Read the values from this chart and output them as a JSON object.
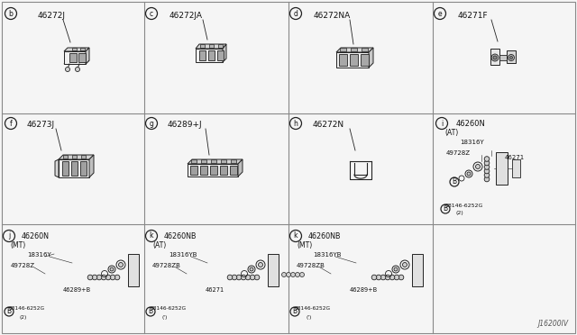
{
  "bg_color": "#f5f5f5",
  "line_color": "#222222",
  "text_color": "#111111",
  "grid_color": "#888888",
  "diagram_code": "J16200IV",
  "col_dividers": [
    0.25,
    0.5,
    0.75
  ],
  "row_dividers": [
    0.662,
    0.33
  ],
  "cells": [
    {
      "id": "b",
      "part": "46272J",
      "col": 0,
      "row": 0
    },
    {
      "id": "c",
      "part": "46272JA",
      "col": 1,
      "row": 0
    },
    {
      "id": "d",
      "part": "46272NA",
      "col": 2,
      "row": 0
    },
    {
      "id": "e",
      "part": "46271F",
      "col": 3,
      "row": 0
    },
    {
      "id": "f",
      "part": "46273J",
      "col": 0,
      "row": 1
    },
    {
      "id": "g",
      "part": "46289+J",
      "col": 1,
      "row": 1
    },
    {
      "id": "h",
      "part": "46272N",
      "col": 2,
      "row": 1
    },
    {
      "id": "i",
      "part": "46260N_AT",
      "col": 3,
      "row": 1
    },
    {
      "id": "j",
      "part": "46260N_MT",
      "col": 0,
      "row": 2
    },
    {
      "id": "k1",
      "part": "46260NB_AT",
      "col": 1,
      "row": 2
    },
    {
      "id": "k2",
      "part": "46260NB_MT",
      "col": 2,
      "row": 2
    }
  ]
}
